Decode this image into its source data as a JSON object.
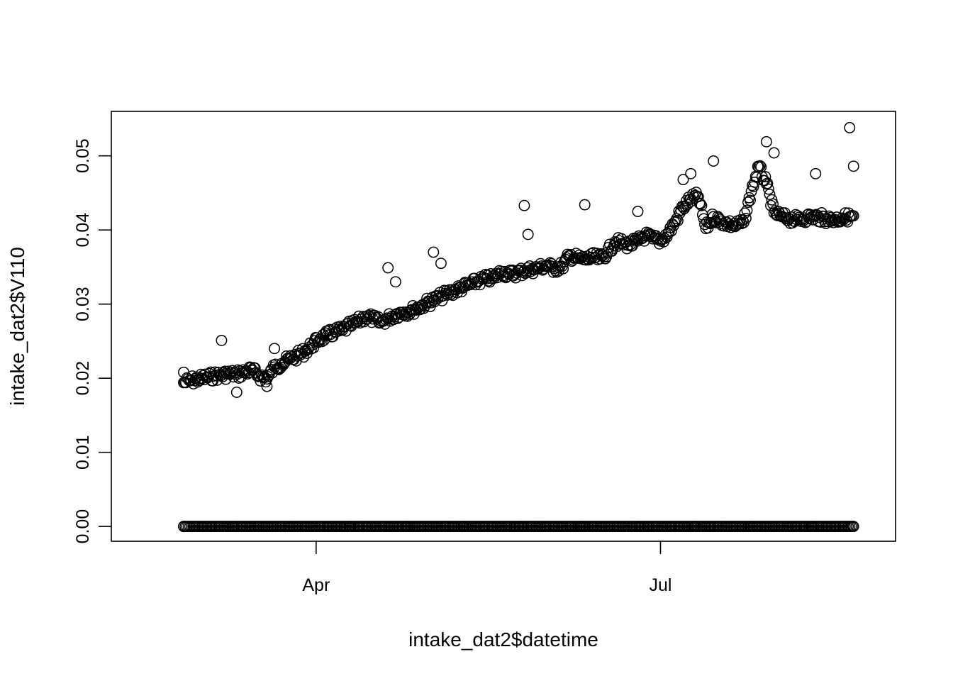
{
  "chart_data": {
    "type": "scatter",
    "title": "",
    "xlabel": "intake_dat2$datetime",
    "ylabel": "intake_dat2$V110",
    "x_tick_labels": [
      {
        "x": "2023-04-01",
        "label": "Apr"
      },
      {
        "x": "2023-07-01",
        "label": "Jul"
      }
    ],
    "y_ticks": [
      0.0,
      0.01,
      0.02,
      0.03,
      0.04,
      0.05
    ],
    "y_tick_labels": [
      "0.00",
      "0.01",
      "0.02",
      "0.03",
      "0.04",
      "0.05"
    ],
    "xlim": [
      "2023-02-13",
      "2023-08-25"
    ],
    "ylim": [
      -0.002,
      0.056
    ],
    "grid": false,
    "marker": "open-circle",
    "marker_color": "#000000",
    "series": [
      {
        "name": "",
        "x": [
          "2023-02-25",
          "2023-02-27",
          "2023-03-01",
          "2023-03-03",
          "2023-03-05",
          "2023-03-07",
          "2023-03-09",
          "2023-03-11",
          "2023-03-13",
          "2023-03-15",
          "2023-03-17",
          "2023-03-19",
          "2023-03-21",
          "2023-03-23",
          "2023-03-25",
          "2023-03-27",
          "2023-03-29",
          "2023-03-31",
          "2023-04-02",
          "2023-04-04",
          "2023-04-06",
          "2023-04-08",
          "2023-04-10",
          "2023-04-12",
          "2023-04-14",
          "2023-04-16",
          "2023-04-18",
          "2023-04-20",
          "2023-04-22",
          "2023-04-24",
          "2023-04-26",
          "2023-04-28",
          "2023-04-30",
          "2023-05-02",
          "2023-05-04",
          "2023-05-06",
          "2023-05-08",
          "2023-05-10",
          "2023-05-12",
          "2023-05-14",
          "2023-05-16",
          "2023-05-18",
          "2023-05-20",
          "2023-05-22",
          "2023-05-24",
          "2023-05-26",
          "2023-05-28",
          "2023-05-30",
          "2023-06-01",
          "2023-06-03",
          "2023-06-05",
          "2023-06-07",
          "2023-06-09",
          "2023-06-11",
          "2023-06-13",
          "2023-06-15",
          "2023-06-17",
          "2023-06-19",
          "2023-06-21",
          "2023-06-23",
          "2023-06-25",
          "2023-06-27",
          "2023-06-29",
          "2023-07-01",
          "2023-07-03",
          "2023-07-05",
          "2023-07-07",
          "2023-07-09",
          "2023-07-11",
          "2023-07-13",
          "2023-07-15",
          "2023-07-17",
          "2023-07-19",
          "2023-07-21",
          "2023-07-23",
          "2023-07-25",
          "2023-07-27",
          "2023-07-29",
          "2023-07-31",
          "2023-08-02",
          "2023-08-04",
          "2023-08-06",
          "2023-08-08",
          "2023-08-10",
          "2023-08-12",
          "2023-08-14",
          "2023-08-16",
          "2023-08-18",
          "2023-08-20",
          "2023-08-21"
        ],
        "y": [
          0.0194,
          0.0197,
          0.0199,
          0.0201,
          0.0203,
          0.0204,
          0.0206,
          0.0205,
          0.0208,
          0.0211,
          0.0203,
          0.0199,
          0.0215,
          0.022,
          0.0226,
          0.023,
          0.0236,
          0.0245,
          0.0253,
          0.0258,
          0.0262,
          0.0265,
          0.0271,
          0.0276,
          0.0283,
          0.028,
          0.0275,
          0.0281,
          0.0286,
          0.0289,
          0.0291,
          0.0295,
          0.0301,
          0.0305,
          0.031,
          0.0315,
          0.0319,
          0.0323,
          0.0327,
          0.0331,
          0.0334,
          0.0335,
          0.0344,
          0.034,
          0.0342,
          0.0345,
          0.0347,
          0.0349,
          0.0352,
          0.0348,
          0.0351,
          0.0365,
          0.0362,
          0.036,
          0.0363,
          0.0361,
          0.037,
          0.0384,
          0.0382,
          0.038,
          0.0385,
          0.0392,
          0.0388,
          0.0385,
          0.0395,
          0.0412,
          0.0431,
          0.0442,
          0.0445,
          0.0402,
          0.0418,
          0.0412,
          0.0408,
          0.0406,
          0.041,
          0.0452,
          0.0485,
          0.0462,
          0.0423,
          0.0418,
          0.0415,
          0.0414,
          0.0416,
          0.0418,
          0.0417,
          0.0415,
          0.0414,
          0.0416,
          0.0418,
          0.0419
        ]
      },
      {
        "name": "",
        "x": [
          "2023-02-25",
          "2023-03-10",
          "2023-03-25",
          "2023-04-10",
          "2023-04-25",
          "2023-05-10",
          "2023-05-25",
          "2023-06-10",
          "2023-06-25",
          "2023-07-10",
          "2023-07-25",
          "2023-08-10",
          "2023-08-21"
        ],
        "y": [
          0,
          0,
          0,
          0,
          0,
          0,
          0,
          0,
          0,
          0,
          0,
          0,
          0
        ]
      },
      {
        "name": "",
        "x": [
          "2023-02-25",
          "2023-03-07",
          "2023-03-11",
          "2023-03-19",
          "2023-03-21",
          "2023-04-20",
          "2023-04-22",
          "2023-05-02",
          "2023-05-04",
          "2023-05-26",
          "2023-05-27",
          "2023-06-11",
          "2023-06-25",
          "2023-07-07",
          "2023-07-09",
          "2023-07-15",
          "2023-07-29",
          "2023-07-31",
          "2023-08-11",
          "2023-08-20",
          "2023-08-21"
        ],
        "y": [
          0.0208,
          0.0251,
          0.0181,
          0.0189,
          0.024,
          0.0349,
          0.033,
          0.037,
          0.0355,
          0.0433,
          0.0394,
          0.0434,
          0.0425,
          0.0468,
          0.0476,
          0.0493,
          0.0519,
          0.0504,
          0.0476,
          0.0538,
          0.0486
        ]
      }
    ]
  }
}
